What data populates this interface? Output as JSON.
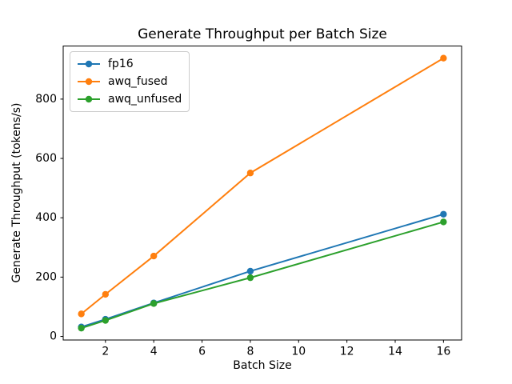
{
  "window": {
    "background_color": "#ffffff",
    "axes_color": "#000000",
    "legend_border_color": "#cccccc"
  },
  "chart_data": {
    "type": "line",
    "title": "Generate Throughput per Batch Size",
    "xlabel": "Batch Size",
    "ylabel": "Generate Throughput (tokens/s)",
    "x": [
      1,
      2,
      4,
      8,
      16
    ],
    "series": [
      {
        "name": "fp16",
        "color": "#1f77b4",
        "values": [
          32,
          58,
          113,
          220,
          412
        ]
      },
      {
        "name": "awq_fused",
        "color": "#ff7f0e",
        "values": [
          76,
          142,
          271,
          551,
          938
        ]
      },
      {
        "name": "awq_unfused",
        "color": "#2ca02c",
        "values": [
          28,
          54,
          111,
          198,
          386
        ]
      }
    ],
    "xticks": [
      2,
      4,
      6,
      8,
      10,
      12,
      14,
      16
    ],
    "yticks": [
      0,
      200,
      400,
      600,
      800
    ],
    "xlim": [
      0.25,
      16.75
    ],
    "ylim": [
      -12,
      979
    ],
    "grid": false,
    "marker": "o",
    "legend_position": "upper left"
  }
}
